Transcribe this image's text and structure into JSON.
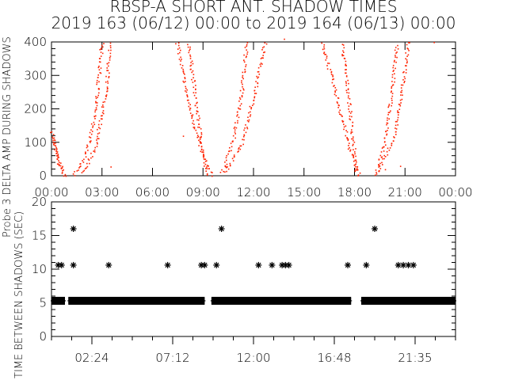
{
  "title": "RBSP-A SHORT ANT. SHADOW TIMES",
  "subtitle": "2019 163 (06/12) 00:00 to 2019 164 (06/13) 00:00",
  "colors": {
    "top_points": "#ff2200",
    "bottom_points": "#000000",
    "axes": "#000000"
  },
  "chart_data": [
    {
      "type": "scatter",
      "ylabel": "Probe 3 DELTA AMP DURING SHADOWS",
      "xlim": [
        0,
        24
      ],
      "ylim": [
        0,
        400
      ],
      "x_ticks": [
        "00:00",
        "03:00",
        "06:00",
        "09:00",
        "12:00",
        "15:00",
        "18:00",
        "21:00",
        "00:00"
      ],
      "y_ticks": [
        "0",
        "100",
        "200",
        "300",
        "400"
      ],
      "point_color": "#ff2200",
      "series": [
        {
          "points": [
            [
              0.0,
              135
            ],
            [
              0.3,
              60
            ],
            [
              0.7,
              0
            ]
          ]
        },
        {
          "points": [
            [
              0.05,
              110
            ],
            [
              0.4,
              40
            ],
            [
              0.8,
              0
            ]
          ]
        },
        {
          "points": [
            [
              1.3,
              0
            ],
            [
              2.0,
              60
            ],
            [
              2.6,
              200
            ],
            [
              3.0,
              410
            ]
          ]
        },
        {
          "points": [
            [
              1.8,
              10
            ],
            [
              2.6,
              90
            ],
            [
              3.2,
              250
            ],
            [
              3.5,
              410
            ]
          ]
        },
        {
          "points": [
            [
              7.4,
              410
            ],
            [
              8.1,
              220
            ],
            [
              8.9,
              70
            ],
            [
              9.5,
              0
            ]
          ]
        },
        {
          "points": [
            [
              8.1,
              410
            ],
            [
              8.6,
              200
            ],
            [
              9.0,
              60
            ],
            [
              9.2,
              0
            ]
          ]
        },
        {
          "points": [
            [
              10.1,
              10
            ],
            [
              10.8,
              110
            ],
            [
              11.3,
              260
            ],
            [
              11.6,
              410
            ]
          ]
        },
        {
          "points": [
            [
              10.3,
              10
            ],
            [
              11.3,
              100
            ],
            [
              12.1,
              260
            ],
            [
              12.7,
              410
            ]
          ]
        },
        {
          "points": [
            [
              16.0,
              410
            ],
            [
              16.9,
              240
            ],
            [
              17.7,
              80
            ],
            [
              18.3,
              0
            ]
          ]
        },
        {
          "points": [
            [
              17.2,
              410
            ],
            [
              17.6,
              250
            ],
            [
              17.9,
              100
            ],
            [
              18.1,
              0
            ]
          ]
        },
        {
          "points": [
            [
              19.2,
              0
            ],
            [
              19.8,
              100
            ],
            [
              20.2,
              260
            ],
            [
              20.5,
              400
            ]
          ]
        },
        {
          "points": [
            [
              19.3,
              10
            ],
            [
              20.3,
              110
            ],
            [
              20.8,
              260
            ],
            [
              21.2,
              410
            ]
          ]
        }
      ],
      "outliers": [
        [
          3.5,
          28
        ],
        [
          7.8,
          120
        ],
        [
          13.8,
          410
        ],
        [
          19.8,
          20
        ],
        [
          20.7,
          30
        ],
        [
          22.7,
          400
        ]
      ]
    },
    {
      "type": "scatter",
      "ylabel": "TIME BETWEEN SHADOWS (SEC)",
      "xlim": [
        0,
        24
      ],
      "ylim": [
        0,
        20
      ],
      "x_ticks": [
        "02:24",
        "07:12",
        "12:00",
        "16:48",
        "21:35"
      ],
      "y_ticks": [
        "0",
        "5",
        "10",
        "15",
        "20"
      ],
      "marker": "asterisk",
      "point_color": "#000000",
      "dense_band": {
        "y": 5.3,
        "segments": [
          [
            0.0,
            0.8
          ],
          [
            1.0,
            9.1
          ],
          [
            9.5,
            17.8
          ],
          [
            18.4,
            24.0
          ]
        ]
      },
      "points": [
        [
          1.3,
          16
        ],
        [
          10.1,
          16
        ],
        [
          19.2,
          16
        ],
        [
          0.4,
          10.6
        ],
        [
          0.6,
          10.6
        ],
        [
          1.3,
          10.6
        ],
        [
          3.4,
          10.6
        ],
        [
          6.9,
          10.6
        ],
        [
          8.9,
          10.6
        ],
        [
          9.1,
          10.6
        ],
        [
          9.8,
          10.6
        ],
        [
          12.3,
          10.6
        ],
        [
          13.1,
          10.6
        ],
        [
          13.7,
          10.6
        ],
        [
          13.9,
          10.6
        ],
        [
          14.1,
          10.6
        ],
        [
          17.6,
          10.6
        ],
        [
          18.7,
          10.6
        ],
        [
          20.6,
          10.6
        ],
        [
          20.9,
          10.6
        ],
        [
          21.2,
          10.6
        ],
        [
          21.5,
          10.6
        ]
      ]
    }
  ]
}
